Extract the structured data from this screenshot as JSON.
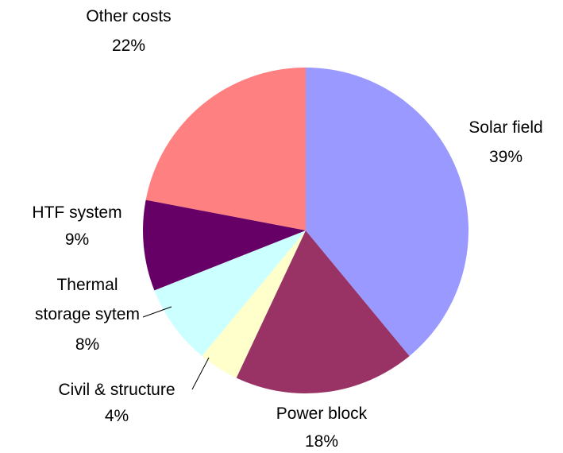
{
  "chart_data": {
    "type": "pie",
    "categories": [
      "Solar field",
      "Power block",
      "Civil & structure",
      "Thermal storage sytem",
      "HTF system",
      "Other costs"
    ],
    "values": [
      39,
      18,
      4,
      8,
      9,
      22
    ],
    "value_labels": [
      "39%",
      "18%",
      "4%",
      "8%",
      "9%",
      "22%"
    ],
    "colors": [
      "#9999ff",
      "#993366",
      "#ffffcc",
      "#ccffff",
      "#660066",
      "#ff8080"
    ]
  }
}
